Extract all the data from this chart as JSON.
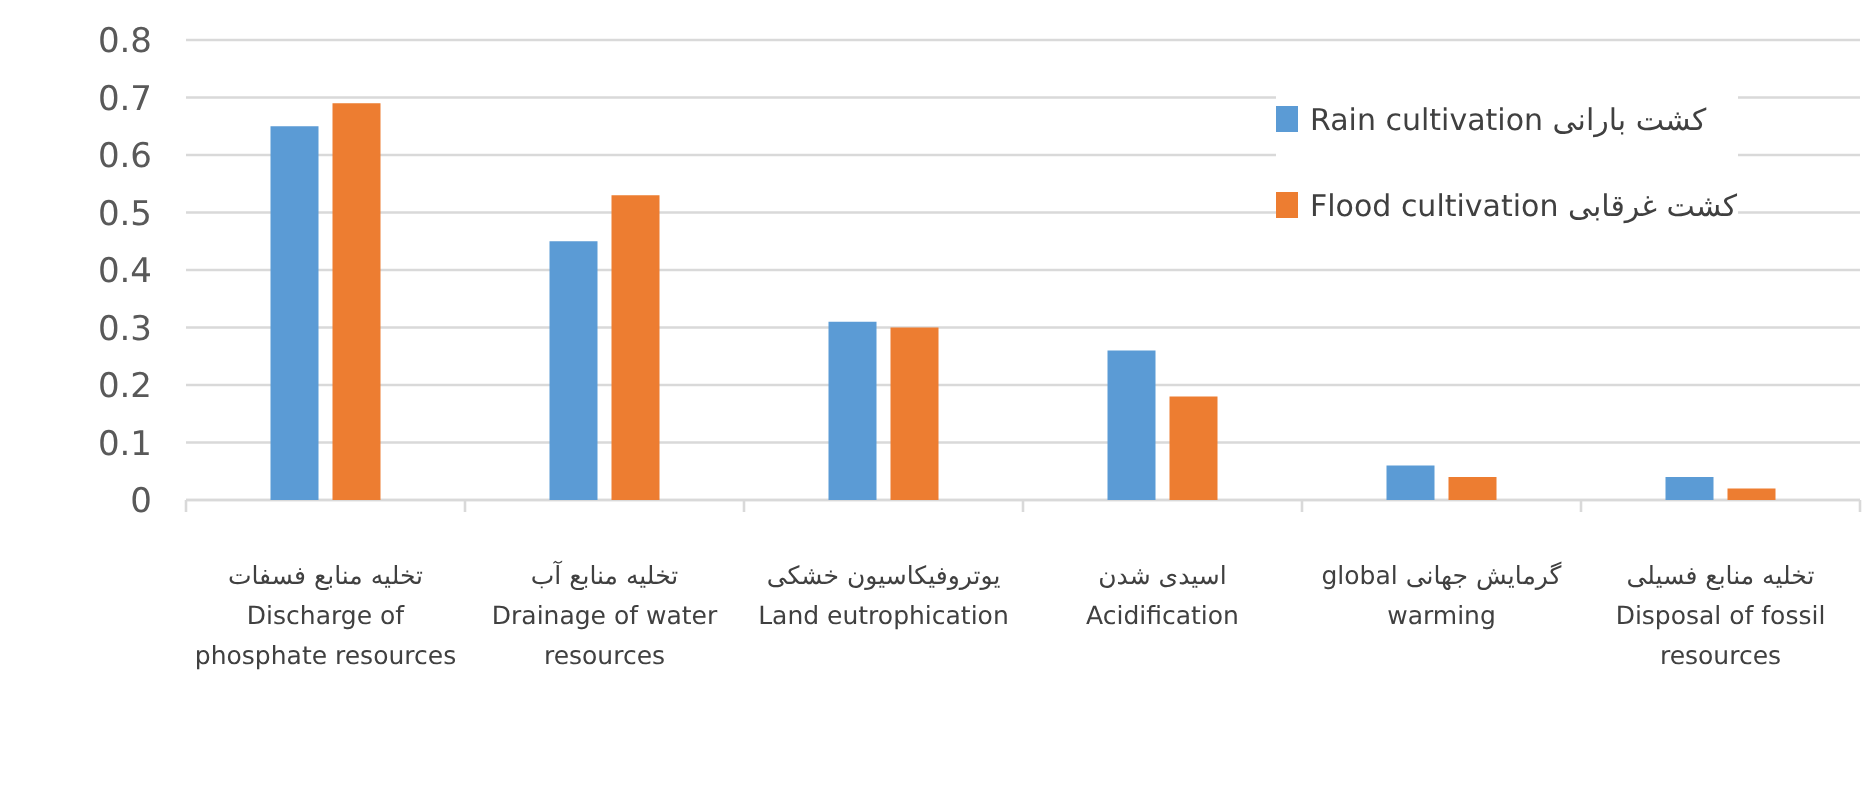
{
  "chart_data": {
    "type": "bar",
    "categories": [
      "تخلیه منابع فسفات Discharge of phosphate resources",
      "تخلیه منابع آب Drainage of water resources",
      "یوتروفیکاسیون خشکی Land eutrophication",
      "اسیدی شدن Acidification",
      "گرمایش جهانی global warming",
      "تخلیه منابع فسیلی Disposal of fossil resources"
    ],
    "series": [
      {
        "name": "کشت بارانی Rain cultivation",
        "color": "#5b9bd5",
        "values": [
          0.65,
          0.45,
          0.31,
          0.26,
          0.06,
          0.04
        ]
      },
      {
        "name": "کشت غرقابی Flood cultivation",
        "color": "#ed7d31",
        "values": [
          0.69,
          0.53,
          0.3,
          0.18,
          0.04,
          0.02
        ]
      }
    ],
    "ylim": [
      0,
      0.8
    ],
    "yticks": [
      0,
      0.1,
      0.2,
      0.3,
      0.4,
      0.5,
      0.6,
      0.7,
      0.8
    ],
    "grid": "y",
    "legend": "top right"
  }
}
